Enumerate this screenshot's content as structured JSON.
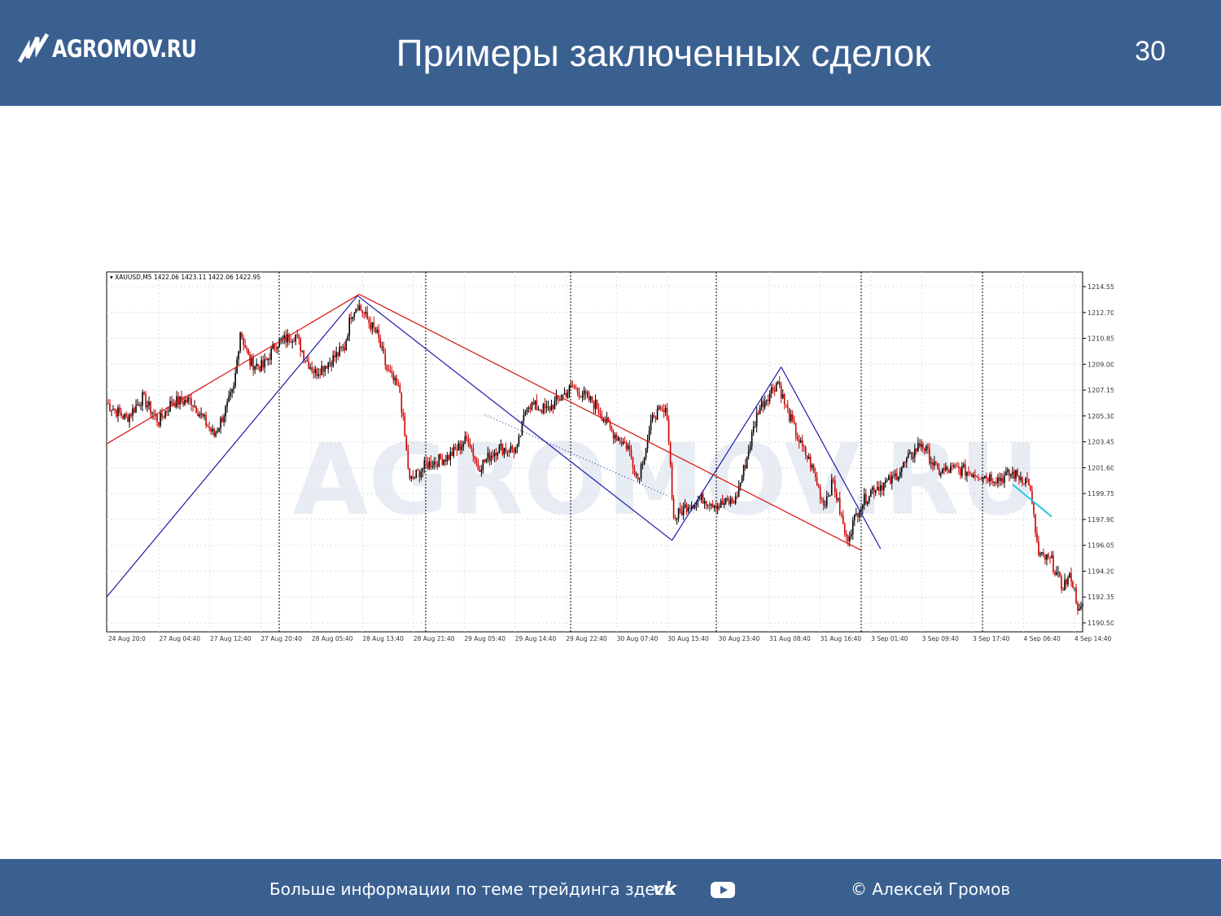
{
  "header": {
    "logo_text": "AGROMOV.RU",
    "title": "Примеры заключенных сделок",
    "page_number": "30"
  },
  "colors": {
    "header_bg": "#3a6090",
    "candle_up": "#000000",
    "candle_down": "#cc0000",
    "trend_blue": "#1a1aaa",
    "trend_red": "#dd1111",
    "trend_cyan": "#22c8dd"
  },
  "chart_data": {
    "type": "line",
    "symbol_label": "XAUUSD,M5  1422.06 1423.11 1422.06 1422.95",
    "x_ticks": [
      "24 Aug 20:0",
      "27 Aug 04:40",
      "27 Aug 12:40",
      "27 Aug 20:40",
      "28 Aug 05:40",
      "28 Aug 13:40",
      "28 Aug 21:40",
      "29 Aug 05:40",
      "29 Aug 14:40",
      "29 Aug 22:40",
      "30 Aug 07:40",
      "30 Aug 15:40",
      "30 Aug 23:40",
      "31 Aug 08:40",
      "31 Aug 16:40",
      "3 Sep 01:40",
      "3 Sep 09:40",
      "3 Sep 17:40",
      "4 Sep 06:40",
      "4 Sep 14:40"
    ],
    "y_ticks": [
      "1214.55",
      "1212.70",
      "1210.85",
      "1209.00",
      "1207.15",
      "1205.30",
      "1203.45",
      "1201.60",
      "1199.75",
      "1197.90",
      "1196.05",
      "1194.20",
      "1192.35",
      "1190.50"
    ],
    "ylim": [
      1190.5,
      1214.55
    ],
    "x_count": 600,
    "price_waypoints": [
      [
        0,
        1206.2
      ],
      [
        12,
        1205.1
      ],
      [
        22,
        1206.6
      ],
      [
        32,
        1204.9
      ],
      [
        40,
        1206.3
      ],
      [
        52,
        1206.4
      ],
      [
        62,
        1204.6
      ],
      [
        66,
        1203.9
      ],
      [
        74,
        1206.0
      ],
      [
        78,
        1207.2
      ],
      [
        82,
        1211.4
      ],
      [
        88,
        1209.1
      ],
      [
        96,
        1208.8
      ],
      [
        104,
        1210.5
      ],
      [
        116,
        1211.1
      ],
      [
        122,
        1209.4
      ],
      [
        128,
        1208.4
      ],
      [
        138,
        1209.3
      ],
      [
        146,
        1210.2
      ],
      [
        150,
        1212.6
      ],
      [
        154,
        1213.3
      ],
      [
        160,
        1212.2
      ],
      [
        166,
        1211.1
      ],
      [
        172,
        1208.6
      ],
      [
        180,
        1207.0
      ],
      [
        186,
        1200.6
      ],
      [
        196,
        1201.8
      ],
      [
        210,
        1202.4
      ],
      [
        222,
        1203.7
      ],
      [
        228,
        1201.6
      ],
      [
        240,
        1203.0
      ],
      [
        252,
        1202.9
      ],
      [
        258,
        1206.2
      ],
      [
        270,
        1205.7
      ],
      [
        286,
        1207.4
      ],
      [
        300,
        1206.1
      ],
      [
        310,
        1204.2
      ],
      [
        320,
        1203.1
      ],
      [
        326,
        1200.8
      ],
      [
        336,
        1205.5
      ],
      [
        344,
        1205.5
      ],
      [
        348,
        1197.9
      ],
      [
        356,
        1198.9
      ],
      [
        366,
        1199.4
      ],
      [
        376,
        1198.9
      ],
      [
        386,
        1199.3
      ],
      [
        392,
        1201.9
      ],
      [
        400,
        1205.8
      ],
      [
        412,
        1207.8
      ],
      [
        416,
        1206.2
      ],
      [
        426,
        1203.2
      ],
      [
        432,
        1201.9
      ],
      [
        440,
        1199.0
      ],
      [
        446,
        1200.6
      ],
      [
        454,
        1196.4
      ],
      [
        462,
        1198.8
      ],
      [
        470,
        1200.1
      ],
      [
        482,
        1200.7
      ],
      [
        500,
        1203.4
      ],
      [
        510,
        1201.3
      ],
      [
        522,
        1201.5
      ],
      [
        536,
        1201.1
      ],
      [
        548,
        1200.8
      ],
      [
        556,
        1201.2
      ],
      [
        566,
        1200.6
      ],
      [
        572,
        1195.3
      ],
      [
        580,
        1194.9
      ],
      [
        586,
        1193.1
      ],
      [
        592,
        1193.8
      ],
      [
        597,
        1191.2
      ],
      [
        599,
        1191.6
      ]
    ],
    "trend_lines": [
      {
        "color": "blue",
        "from": [
          0,
          1192.35
        ],
        "to": [
          154,
          1213.9
        ]
      },
      {
        "color": "blue",
        "from": [
          154,
          1213.9
        ],
        "to": [
          347,
          1196.4
        ]
      },
      {
        "color": "blue",
        "from": [
          347,
          1196.4
        ],
        "to": [
          414,
          1208.8
        ]
      },
      {
        "color": "blue",
        "from": [
          414,
          1208.8
        ],
        "to": [
          475,
          1195.8
        ]
      },
      {
        "color": "blue-dotted",
        "from": [
          232,
          1205.4
        ],
        "to": [
          344,
          1199.6
        ]
      },
      {
        "color": "red",
        "from": [
          0,
          1203.3
        ],
        "to": [
          155,
          1214.0
        ]
      },
      {
        "color": "red",
        "from": [
          155,
          1214.0
        ],
        "to": [
          463,
          1195.7
        ]
      },
      {
        "color": "cyan",
        "from": [
          556,
          1200.4
        ],
        "to": [
          580,
          1198.1
        ]
      }
    ]
  },
  "watermark": {
    "text": "AGROMOV.RU"
  },
  "footer": {
    "more_info": "Больше информации по теме трейдинга здесь",
    "vk_icon": "vk-icon",
    "youtube_icon": "youtube-icon",
    "copyright": "© Алексей Громов"
  }
}
